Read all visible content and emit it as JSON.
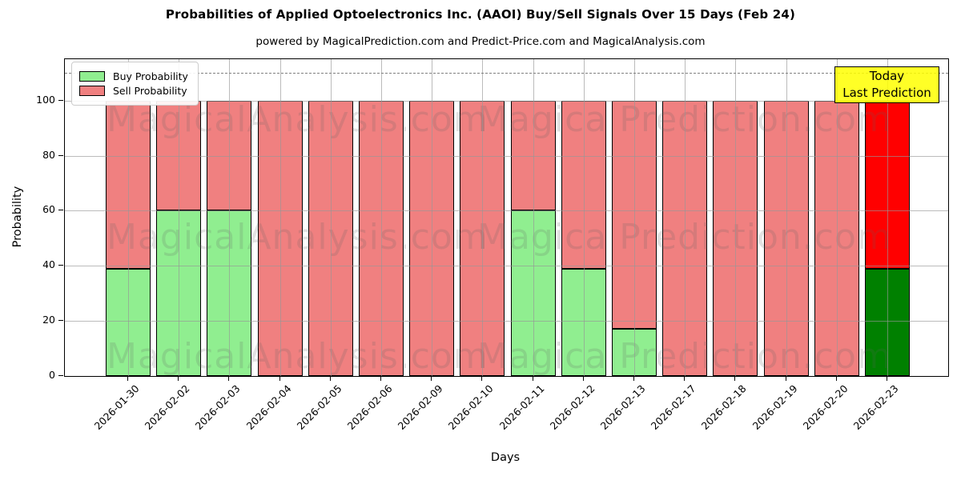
{
  "header": {
    "title": "Probabilities of Applied Optoelectronics Inc. (AAOI) Buy/Sell Signals Over 15 Days (Feb 24)",
    "subtitle": "powered by MagicalPrediction.com and Predict-Price.com and MagicalAnalysis.com"
  },
  "axes": {
    "ylabel": "Probability",
    "xlabel": "Days",
    "yticks": [
      0,
      20,
      40,
      60,
      80,
      100
    ],
    "ylim": [
      0,
      115
    ],
    "dashed_line_y": 110,
    "grid": true
  },
  "legend": {
    "position": "upper left",
    "items": [
      {
        "label": "Buy Probability",
        "color": "#90ee90"
      },
      {
        "label": "Sell Probability",
        "color": "#f08080"
      }
    ]
  },
  "annotation": {
    "line1": "Today",
    "line2": "Last Prediction",
    "bg_color": "#ffff00"
  },
  "watermarks": {
    "left": "MagicalAnalysis.com",
    "right": "Magica Prediction.com"
  },
  "chart_data": {
    "type": "bar",
    "stacked": true,
    "title": "Probabilities of Applied Optoelectronics Inc. (AAOI) Buy/Sell Signals Over 15 Days (Feb 24)",
    "xlabel": "Days",
    "ylabel": "Probability",
    "ylim": [
      0,
      115
    ],
    "categories": [
      "2026-01-30",
      "2026-02-02",
      "2026-02-03",
      "2026-02-04",
      "2026-02-05",
      "2026-02-06",
      "2026-02-09",
      "2026-02-10",
      "2026-02-11",
      "2026-02-12",
      "2026-02-13",
      "2026-02-17",
      "2026-02-18",
      "2026-02-19",
      "2026-02-20",
      "2026-02-23"
    ],
    "series": [
      {
        "name": "Buy Probability",
        "color": "#90ee90",
        "today_color": "#008000",
        "values": [
          39,
          60,
          60,
          0,
          0,
          0,
          0,
          0,
          60,
          39,
          17,
          0,
          0,
          0,
          0,
          39
        ]
      },
      {
        "name": "Sell Probability",
        "color": "#f08080",
        "today_color": "#ff0000",
        "values": [
          61,
          40,
          40,
          100,
          100,
          100,
          100,
          100,
          40,
          61,
          83,
          100,
          100,
          100,
          100,
          61
        ]
      }
    ],
    "today_index": 15,
    "legend_position": "upper left",
    "grid": true
  }
}
